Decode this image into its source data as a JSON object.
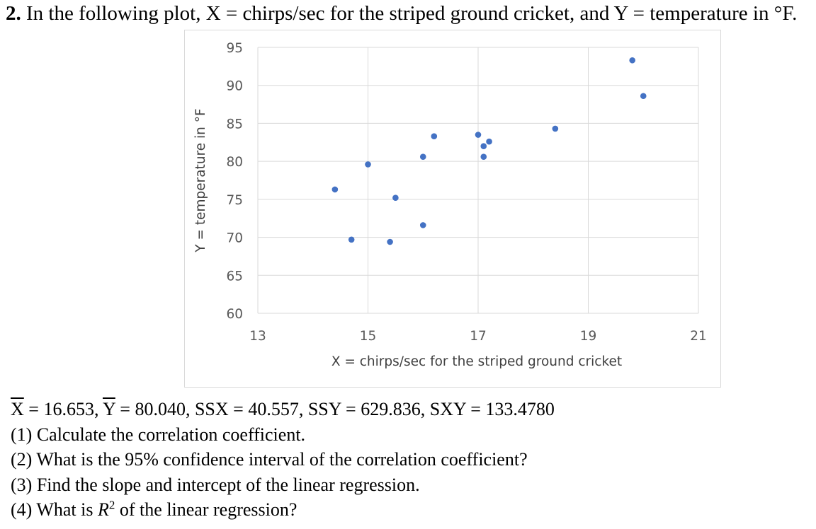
{
  "problem": {
    "number": "2.",
    "text": "In the following plot, X = chirps/sec for the striped ground cricket, and Y = temperature in °F."
  },
  "chart_data": {
    "type": "scatter",
    "title": "",
    "xlabel": "X = chirps/sec for the striped ground cricket",
    "ylabel": "Y = temperature in °F",
    "xlim": [
      13,
      21
    ],
    "ylim": [
      60,
      95
    ],
    "xticks": [
      "13",
      "15",
      "17",
      "19",
      "21"
    ],
    "yticks": [
      "60",
      "65",
      "70",
      "75",
      "80",
      "85",
      "90",
      "95"
    ],
    "grid": true,
    "marker_color": "#4472c4",
    "points": [
      {
        "x": 20.0,
        "y": 88.6
      },
      {
        "x": 16.0,
        "y": 71.6
      },
      {
        "x": 19.8,
        "y": 93.3
      },
      {
        "x": 18.4,
        "y": 84.3
      },
      {
        "x": 17.1,
        "y": 80.6
      },
      {
        "x": 15.5,
        "y": 75.2
      },
      {
        "x": 14.7,
        "y": 69.7
      },
      {
        "x": 17.1,
        "y": 82.0
      },
      {
        "x": 15.4,
        "y": 69.4
      },
      {
        "x": 16.2,
        "y": 83.3
      },
      {
        "x": 15.0,
        "y": 79.6
      },
      {
        "x": 17.2,
        "y": 82.6
      },
      {
        "x": 16.0,
        "y": 80.6
      },
      {
        "x": 17.0,
        "y": 83.5
      },
      {
        "x": 14.4,
        "y": 76.3
      }
    ]
  },
  "stats": {
    "xbar_symbol": "X",
    "xbar_value": " = 16.653, ",
    "ybar_symbol": "Y",
    "ybar_value": " = 80.040, SSX = 40.557, SSY = 629.836, SXY = 133.4780"
  },
  "questions": [
    "(1) Calculate the correlation coefficient.",
    "(2) What is the 95% confidence interval of the correlation coefficient?",
    "(3) Find the slope and intercept of the linear regression."
  ],
  "question4": {
    "prefix": "(4) What is ",
    "var": "R",
    "exp": "2",
    "suffix": " of the linear regression?"
  }
}
